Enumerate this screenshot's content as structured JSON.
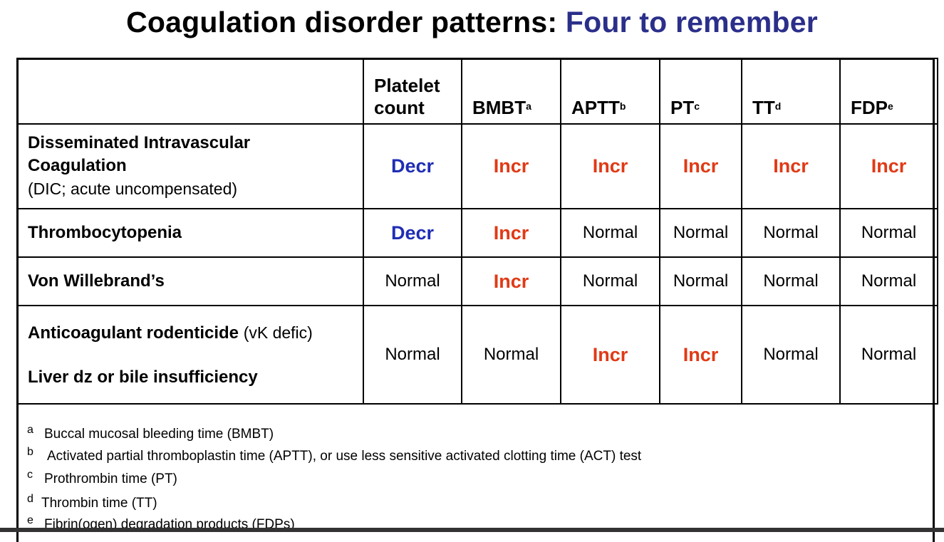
{
  "title": {
    "main": "Coagulation disorder patterns:",
    "accent": "Four to remember",
    "accent_color": "#2b2f8a"
  },
  "table": {
    "headers": [
      {
        "label": ""
      },
      {
        "label": "Platelet count",
        "sup": ""
      },
      {
        "label": "BMBT",
        "sup": "a"
      },
      {
        "label": "APTT",
        "sup": "b"
      },
      {
        "label": "PT",
        "sup": "c"
      },
      {
        "label": "TT",
        "sup": "d"
      },
      {
        "label": "FDP",
        "sup": "e"
      }
    ],
    "rows": [
      {
        "name_bold": "Disseminated Intravascular Coagulation",
        "name_sub": "(DIC; acute uncompensated)",
        "values": [
          "Decr",
          "Incr",
          "Incr",
          "Incr",
          "Incr",
          "Incr"
        ]
      },
      {
        "name_bold": "Thrombocytopenia",
        "values": [
          "Decr",
          "Incr",
          "Normal",
          "Normal",
          "Normal",
          "Normal"
        ]
      },
      {
        "name_bold": "Von Willebrand’s",
        "values": [
          "Normal",
          "Incr",
          "Normal",
          "Normal",
          "Normal",
          "Normal"
        ]
      },
      {
        "name_bold": "Anticoagulant rodenticide",
        "name_extra": "(vK defic)",
        "name_bold2": "Liver dz or bile insufficiency",
        "values": [
          "Normal",
          "Normal",
          "Incr",
          "Incr",
          "Normal",
          "Normal"
        ]
      }
    ],
    "colors": {
      "decr": "#1f2db5",
      "incr": "#e03a16",
      "normal": "#000000"
    }
  },
  "footnotes": [
    {
      "mark": "a",
      "text": "Buccal mucosal bleeding time (BMBT)"
    },
    {
      "mark": "b",
      "text": "Activated partial thromboplastin time  (APTT), or use less sensitive activated clotting time (ACT) test"
    },
    {
      "mark": "c",
      "text": "Prothrombin time (PT)"
    },
    {
      "mark": "d",
      "text": "Thrombin time (TT)"
    },
    {
      "mark": "e",
      "text": "Fibrin(ogen) degradation products (FDPs)"
    }
  ]
}
